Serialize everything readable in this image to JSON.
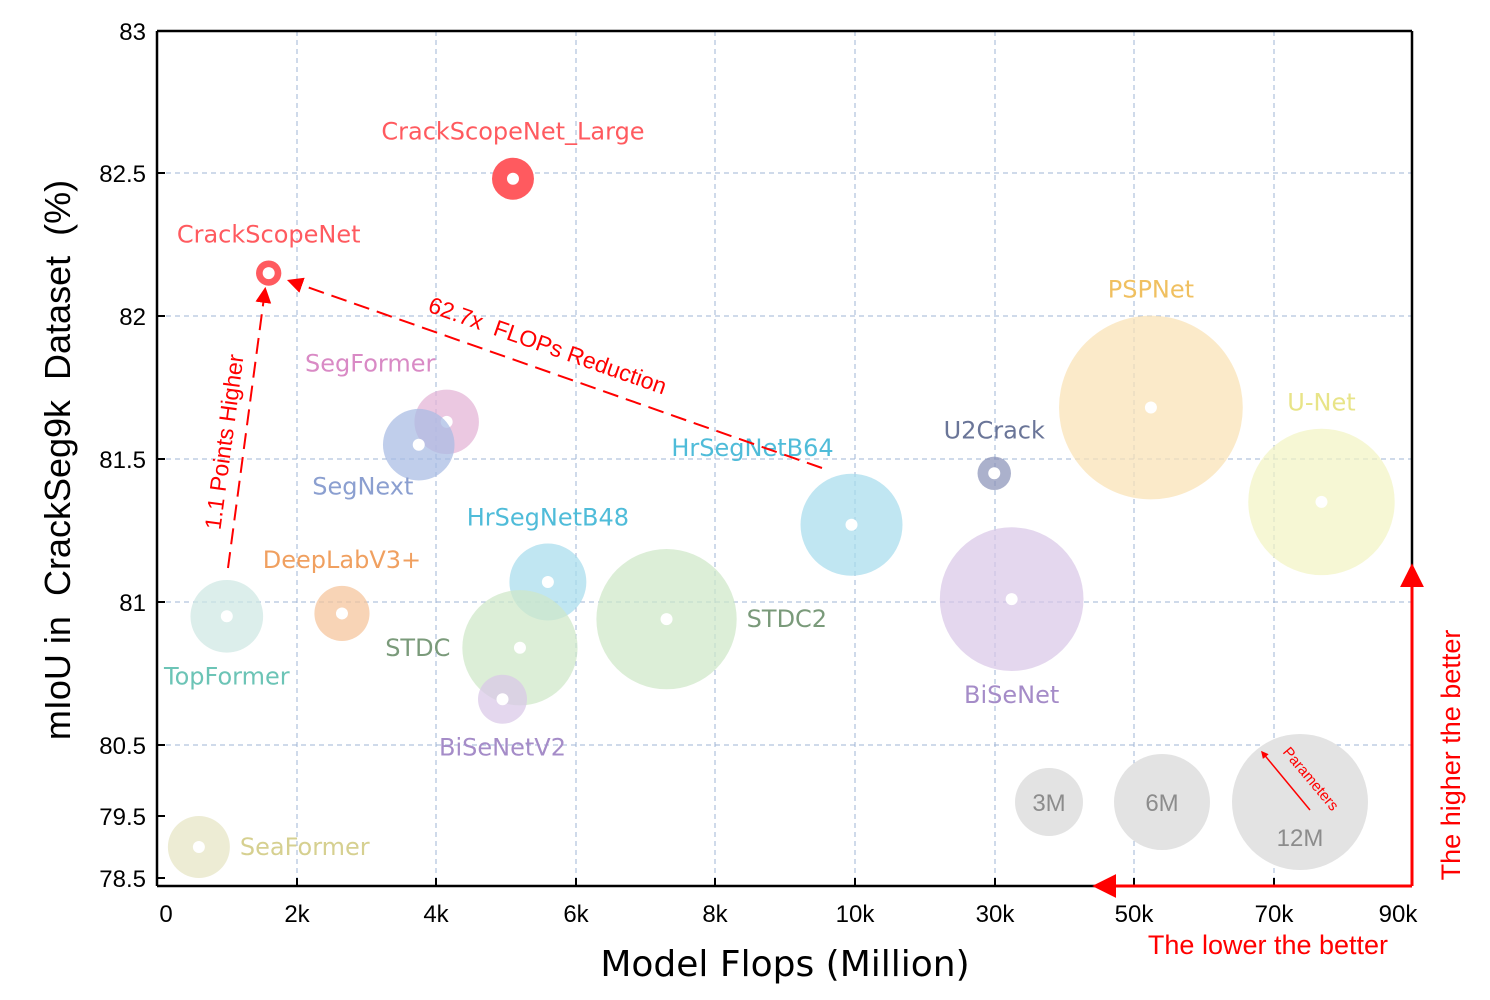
{
  "chart_data": {
    "type": "scatter",
    "title": "",
    "xlabel": "Model Flops (Million)",
    "ylabel": "mIoU in  CrackSeg9k  Dataset  (%)",
    "x_ticks": [
      "0",
      "2k",
      "4k",
      "6k",
      "8k",
      "10k",
      "30k",
      "50k",
      "70k",
      "90k"
    ],
    "y_ticks": [
      "78.5",
      "79.5",
      "80.5",
      "81",
      "81.5",
      "82",
      "82.5",
      "83"
    ],
    "grid": true,
    "series": [
      {
        "name": "CrackScopeNet_Large",
        "x": 5100,
        "y": 82.48,
        "color": "#ff5a5f",
        "params_m": 1.1,
        "label_pos": "above"
      },
      {
        "name": "CrackScopeNet",
        "x": 1600,
        "y": 82.15,
        "color": "#ff5a5f",
        "params_m": 0.4,
        "label_pos": "above"
      },
      {
        "name": "SegFormer",
        "x": 4150,
        "y": 81.63,
        "color": "#e3b3d6",
        "params_m": 2.6,
        "label_pos": "above-left"
      },
      {
        "name": "SegNext",
        "x": 3750,
        "y": 81.55,
        "color": "#a7bbe3",
        "params_m": 3.2,
        "label_pos": "below-left"
      },
      {
        "name": "TopFormer",
        "x": 1000,
        "y": 80.95,
        "color": "#cfe8e3",
        "params_m": 3.3,
        "label_pos": "below"
      },
      {
        "name": "DeepLabV3+",
        "x": 2650,
        "y": 80.96,
        "color": "#f5c49a",
        "params_m": 1.9,
        "label_pos": "above"
      },
      {
        "name": "HrSegNetB48",
        "x": 5600,
        "y": 81.07,
        "color": "#a8dced",
        "params_m": 3.7,
        "label_pos": "above"
      },
      {
        "name": "STDC",
        "x": 5200,
        "y": 80.84,
        "color": "#cfe8c8",
        "params_m": 8.3,
        "label_pos": "left"
      },
      {
        "name": "BiSeNetV2",
        "x": 4950,
        "y": 80.66,
        "color": "#d9c8e8",
        "params_m": 1.5,
        "label_pos": "below"
      },
      {
        "name": "STDC2",
        "x": 7300,
        "y": 80.94,
        "color": "#cfe8c8",
        "params_m": 12.3,
        "label_pos": "right"
      },
      {
        "name": "HrSegNetB64",
        "x": 9950,
        "y": 81.27,
        "color": "#a8dced",
        "params_m": 6.5,
        "label_pos": "above-left"
      },
      {
        "name": "U2Crack",
        "x": 30000,
        "y": 81.45,
        "color": "#8a93b8",
        "params_m": 0.7,
        "label_pos": "above"
      },
      {
        "name": "BiSeNet",
        "x": 32500,
        "y": 81.01,
        "color": "#d9c8e8",
        "params_m": 12.9,
        "label_pos": "below"
      },
      {
        "name": "PSPNet",
        "x": 52500,
        "y": 81.68,
        "color": "#f9e2b4",
        "params_m": 21.1,
        "label_pos": "above"
      },
      {
        "name": "U-Net",
        "x": 77000,
        "y": 81.35,
        "color": "#f2f4c4",
        "params_m": 13.4,
        "label_pos": "above"
      },
      {
        "name": "SeaFormer",
        "x": 600,
        "y": 79.0,
        "color": "#e6e5c3",
        "params_m": 2.4,
        "label_pos": "right"
      }
    ],
    "size_legend": {
      "title": "Parameters",
      "items": [
        {
          "label": "3M"
        },
        {
          "label": "6M"
        },
        {
          "label": "12M"
        }
      ]
    },
    "annotations": {
      "reduction": "62.7x  FLOPs Reduction",
      "higher_points": "1.1 Points Higher",
      "lower_better": "The lower the better",
      "higher_better": "The higher the better"
    }
  }
}
